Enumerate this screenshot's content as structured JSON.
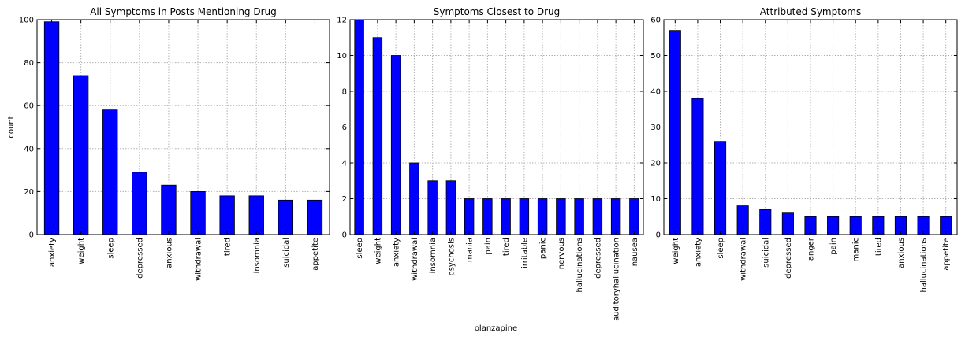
{
  "figure": {
    "xlabel": "olanzapine",
    "bar_color": "#0000ff",
    "grid": true
  },
  "chart_data": [
    {
      "type": "bar",
      "title": "All Symptoms in Posts Mentioning Drug",
      "ylabel": "count",
      "xlabel": "",
      "categories": [
        "anxiety",
        "weight",
        "sleep",
        "depressed",
        "anxious",
        "withdrawal",
        "tired",
        "insomnia",
        "suicidal",
        "appetite"
      ],
      "values": [
        99,
        74,
        58,
        29,
        23,
        20,
        18,
        18,
        16,
        16
      ],
      "ylim": [
        0,
        100
      ],
      "yticks": [
        0,
        20,
        40,
        60,
        80,
        100
      ],
      "grid": true
    },
    {
      "type": "bar",
      "title": "Symptoms Closest to Drug",
      "ylabel": "",
      "xlabel": "olanzapine",
      "categories": [
        "sleep",
        "weight",
        "anxiety",
        "withdrawal",
        "insomnia",
        "psychosis",
        "mania",
        "pain",
        "tired",
        "irritable",
        "panic",
        "nervous",
        "hallucinations",
        "depressed",
        "auditoryhallucination",
        "nausea"
      ],
      "values": [
        12,
        11,
        10,
        4,
        3,
        3,
        2,
        2,
        2,
        2,
        2,
        2,
        2,
        2,
        2,
        2
      ],
      "ylim": [
        0,
        12
      ],
      "yticks": [
        0,
        2,
        4,
        6,
        8,
        10,
        12
      ],
      "grid": true
    },
    {
      "type": "bar",
      "title": "Attributed Symptoms",
      "ylabel": "",
      "xlabel": "",
      "categories": [
        "weight",
        "anxiety",
        "sleep",
        "withdrawal",
        "suicidal",
        "depressed",
        "anger",
        "pain",
        "manic",
        "tired",
        "anxious",
        "hallucinations",
        "appetite"
      ],
      "values": [
        57,
        38,
        26,
        8,
        7,
        6,
        5,
        5,
        5,
        5,
        5,
        5,
        5
      ],
      "ylim": [
        0,
        60
      ],
      "yticks": [
        0,
        10,
        20,
        30,
        40,
        50,
        60
      ],
      "grid": true
    }
  ]
}
